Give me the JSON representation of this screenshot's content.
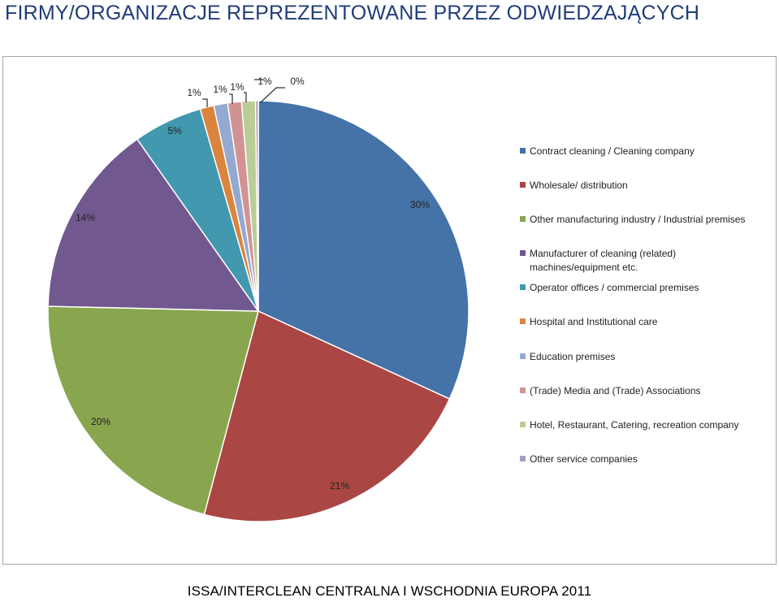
{
  "page": {
    "title": "FIRMY/ORGANIZACJE REPREZENTOWANE PRZEZ ODWIEDZAJĄCYCH",
    "footer": "ISSA/INTERCLEAN CENTRALNA I WSCHODNIA EUROPA 2011"
  },
  "chart_data": {
    "type": "pie",
    "title": "",
    "legend_position": "right",
    "slices": [
      {
        "name": "Contract cleaning / Cleaning company",
        "value": 30,
        "label": "30%",
        "color": "#4572A7"
      },
      {
        "name": "Wholesale/ distribution",
        "value": 21,
        "label": "21%",
        "color": "#AA4643"
      },
      {
        "name": "Other manufacturing industry  / Industrial  premises",
        "value": 20,
        "label": "20%",
        "color": "#89A54E"
      },
      {
        "name": "Manufacturer of cleaning (related) machines/equipment etc.",
        "value": 14,
        "label": "14%",
        "color": "#71588F"
      },
      {
        "name": "Operator offices / commercial premises",
        "value": 5,
        "label": "5%",
        "color": "#4198AF"
      },
      {
        "name": "Hospital  and Institutional  care",
        "value": 1,
        "label": "1%",
        "color": "#DB843D"
      },
      {
        "name": "Education premises",
        "value": 1,
        "label": "1%",
        "color": "#93A9CF"
      },
      {
        "name": "(Trade) Media and (Trade) Associations",
        "value": 1,
        "label": "1%",
        "color": "#D19392"
      },
      {
        "name": "Hotel, Restaurant,  Catering,  recreation company",
        "value": 1,
        "label": "1%",
        "color": "#B9CD96"
      },
      {
        "name": "Other service companies",
        "value": 0.2,
        "label": "0%",
        "color": "#A99BBD"
      }
    ]
  }
}
